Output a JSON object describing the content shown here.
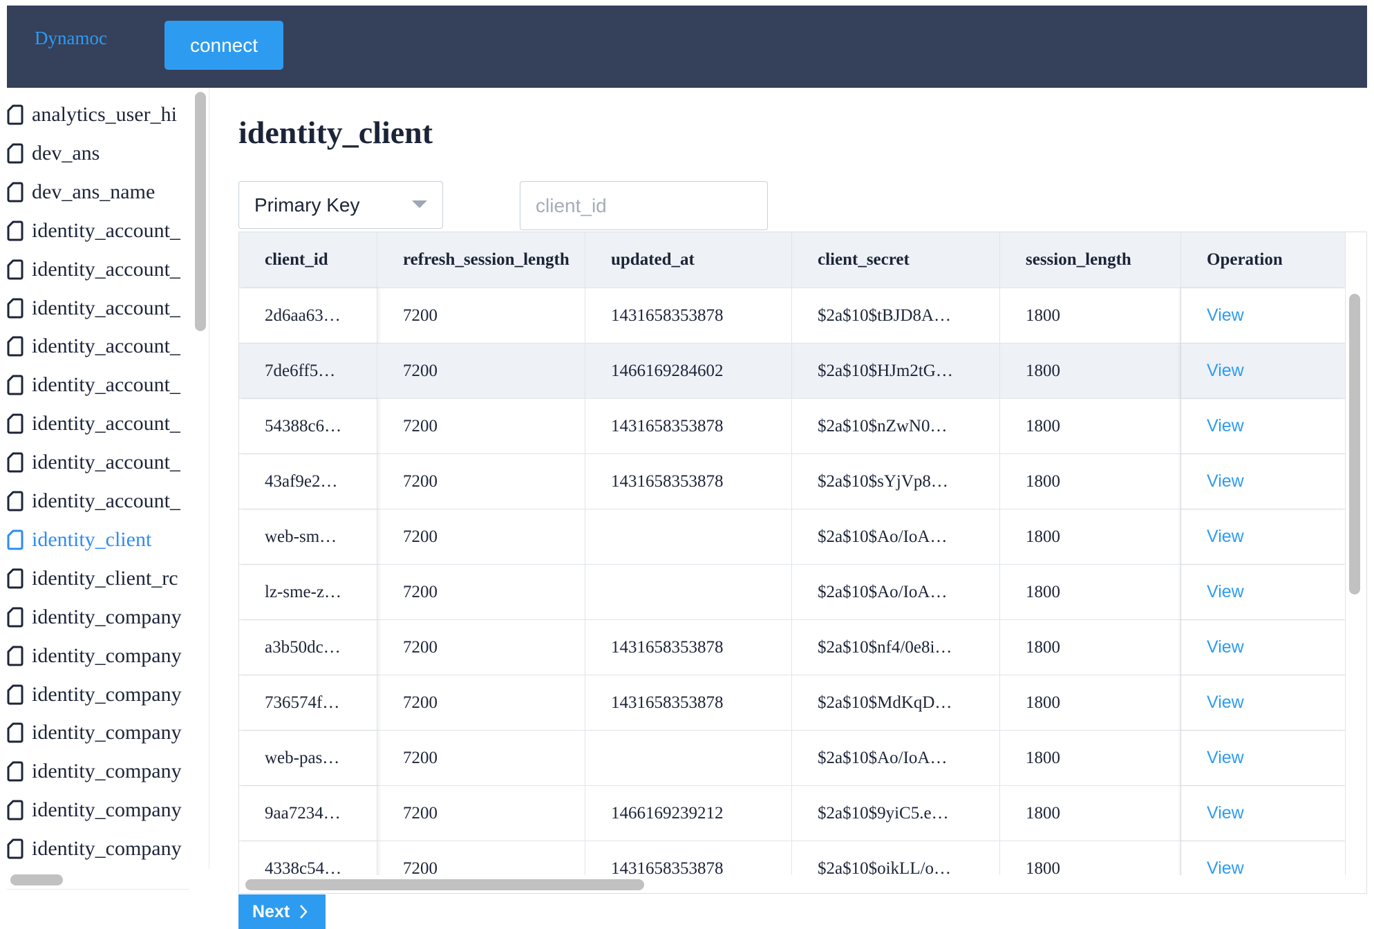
{
  "header": {
    "brand": "Dynamoc",
    "connect_button": "connect"
  },
  "sidebar": {
    "items": [
      "analytics_user_hi",
      "dev_ans",
      "dev_ans_name",
      "identity_account_",
      "identity_account_",
      "identity_account_",
      "identity_account_",
      "identity_account_",
      "identity_account_",
      "identity_account_",
      "identity_account_",
      "identity_client",
      "identity_client_rc",
      "identity_company",
      "identity_company",
      "identity_company",
      "identity_company",
      "identity_company",
      "identity_company",
      "identity_company"
    ]
  },
  "main": {
    "title": "identity_client",
    "key_select": "Primary Key",
    "key_input_placeholder": "client_id",
    "next_button": "Next"
  },
  "table": {
    "columns": [
      "client_id",
      "refresh_session_length",
      "updated_at",
      "client_secret",
      "session_length",
      "Operation"
    ],
    "rows": [
      [
        "2d6aa63…",
        "7200",
        "1431658353878",
        "$2a$10$tBJD8A…",
        "1800",
        "View"
      ],
      [
        "7de6ff5…",
        "7200",
        "1466169284602",
        "$2a$10$HJm2tG…",
        "1800",
        "View"
      ],
      [
        "54388c6…",
        "7200",
        "1431658353878",
        "$2a$10$nZwN0…",
        "1800",
        "View"
      ],
      [
        "43af9e2…",
        "7200",
        "1431658353878",
        "$2a$10$sYjVp8…",
        "1800",
        "View"
      ],
      [
        "web-sm…",
        "7200",
        "",
        "$2a$10$Ao/IoA…",
        "1800",
        "View"
      ],
      [
        "lz-sme-z…",
        "7200",
        "",
        "$2a$10$Ao/IoA…",
        "1800",
        "View"
      ],
      [
        "a3b50dc…",
        "7200",
        "1431658353878",
        "$2a$10$nf4/0e8i…",
        "1800",
        "View"
      ],
      [
        "736574f…",
        "7200",
        "1431658353878",
        "$2a$10$MdKqD…",
        "1800",
        "View"
      ],
      [
        "web-pas…",
        "7200",
        "",
        "$2a$10$Ao/IoA…",
        "1800",
        "View"
      ],
      [
        "9aa7234…",
        "7200",
        "1466169239212",
        "$2a$10$9yiC5.e…",
        "1800",
        "View"
      ],
      [
        "4338c54…",
        "7200",
        "1431658353878",
        "$2a$10$oikLL/o…",
        "1800",
        "View"
      ]
    ]
  }
}
